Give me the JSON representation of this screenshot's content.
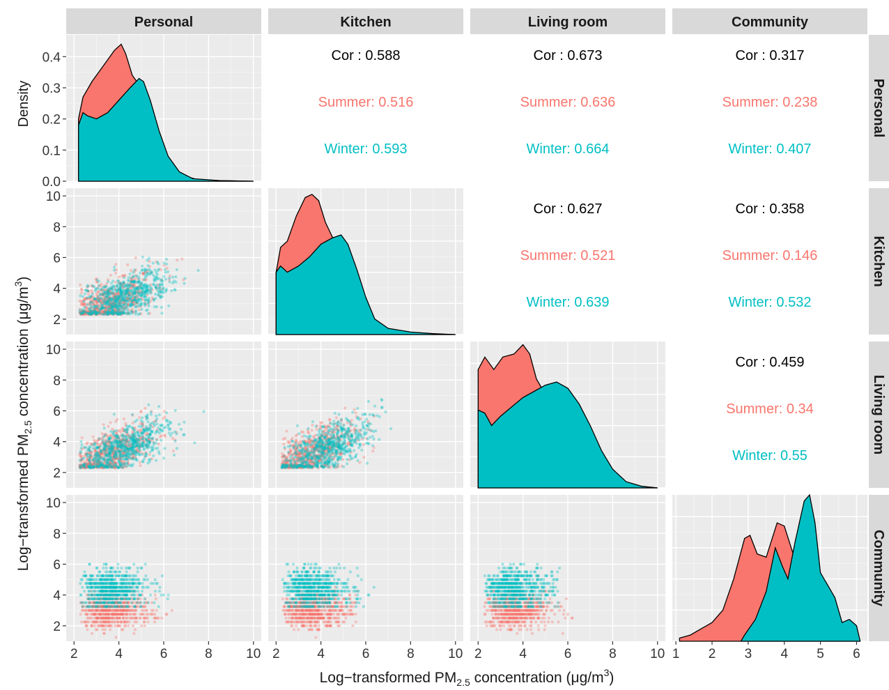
{
  "chart_data": {
    "type": "scatter-matrix",
    "ylabel_left_main": "Log−transformed PM",
    "ylabel_left_sub": "2.5",
    "ylabel_left_tail": " concentration (μg/m",
    "ylabel_left_sup": "3",
    "ylabel_left_close": ")",
    "xlabel_main": "Log−transformed PM",
    "xlabel_sub": "2.5",
    "xlabel_tail": " concentration (μg/m",
    "xlabel_sup": "3",
    "xlabel_close": ")",
    "density_ylabel": "Density",
    "variables": [
      "Personal",
      "Kitchen",
      "Living room",
      "Community"
    ],
    "series": [
      {
        "name": "Summer",
        "color": "#F8766D"
      },
      {
        "name": "Winter",
        "color": "#00BFC4"
      }
    ],
    "density_axis": {
      "ticks": [
        0.0,
        0.1,
        0.2,
        0.3,
        0.4
      ],
      "tick_labels": [
        "0.0",
        "0.1",
        "0.2",
        "0.3",
        "0.4"
      ],
      "ylim": [
        0,
        0.47
      ]
    },
    "y_axis": {
      "ticks": [
        2,
        4,
        6,
        8,
        10
      ],
      "ylim": [
        1,
        10.5
      ]
    },
    "x_axes": [
      {
        "ticks": [
          2,
          4,
          6,
          8,
          10
        ],
        "xlim": [
          1.65,
          10.35
        ]
      },
      {
        "ticks": [
          2,
          4,
          6,
          8,
          10
        ],
        "xlim": [
          1.65,
          10.35
        ]
      },
      {
        "ticks": [
          2,
          4,
          6,
          8,
          10
        ],
        "xlim": [
          1.65,
          10.35
        ]
      },
      {
        "ticks": [
          1,
          2,
          3,
          4,
          5,
          6
        ],
        "xlim": [
          0.9,
          6.3
        ]
      }
    ],
    "correlations": [
      {
        "row": 0,
        "col": 1,
        "cor_label": "Cor : 0.588",
        "summer_label": "Summer: 0.516",
        "winter_label": "Winter: 0.593"
      },
      {
        "row": 0,
        "col": 2,
        "cor_label": "Cor : 0.673",
        "summer_label": "Summer: 0.636",
        "winter_label": "Winter: 0.664"
      },
      {
        "row": 0,
        "col": 3,
        "cor_label": "Cor : 0.317",
        "summer_label": "Summer: 0.238",
        "winter_label": "Winter: 0.407"
      },
      {
        "row": 1,
        "col": 2,
        "cor_label": "Cor : 0.627",
        "summer_label": "Summer: 0.521",
        "winter_label": "Winter: 0.639"
      },
      {
        "row": 1,
        "col": 3,
        "cor_label": "Cor : 0.358",
        "summer_label": "Summer: 0.146",
        "winter_label": "Winter: 0.532"
      },
      {
        "row": 2,
        "col": 3,
        "cor_label": "Cor : 0.459",
        "summer_label": "Summer: 0.34",
        "winter_label": "Winter: 0.55"
      }
    ],
    "densities": [
      {
        "var": "Personal",
        "summer": [
          [
            2.2,
            0.0
          ],
          [
            2.2,
            0.2
          ],
          [
            2.4,
            0.27
          ],
          [
            2.8,
            0.32
          ],
          [
            3.3,
            0.37
          ],
          [
            3.8,
            0.42
          ],
          [
            4.1,
            0.44
          ],
          [
            4.3,
            0.41
          ],
          [
            4.6,
            0.34
          ],
          [
            5.0,
            0.3
          ],
          [
            5.4,
            0.22
          ],
          [
            5.8,
            0.13
          ],
          [
            6.3,
            0.06
          ],
          [
            6.8,
            0.02
          ],
          [
            7.5,
            0.005
          ],
          [
            8.5,
            0.002
          ],
          [
            10.0,
            0.0
          ]
        ],
        "winter": [
          [
            2.2,
            0.0
          ],
          [
            2.2,
            0.18
          ],
          [
            2.4,
            0.22
          ],
          [
            2.6,
            0.21
          ],
          [
            3.0,
            0.2
          ],
          [
            3.5,
            0.22
          ],
          [
            4.0,
            0.26
          ],
          [
            4.5,
            0.3
          ],
          [
            4.9,
            0.33
          ],
          [
            5.1,
            0.32
          ],
          [
            5.4,
            0.26
          ],
          [
            5.8,
            0.16
          ],
          [
            6.2,
            0.08
          ],
          [
            6.7,
            0.03
          ],
          [
            7.3,
            0.008
          ],
          [
            8.5,
            0.002
          ],
          [
            10.0,
            0.0
          ]
        ]
      },
      {
        "var": "Kitchen",
        "summer": [
          [
            2.0,
            0.0
          ],
          [
            2.0,
            0.2
          ],
          [
            2.2,
            0.28
          ],
          [
            2.5,
            0.3
          ],
          [
            2.9,
            0.38
          ],
          [
            3.3,
            0.44
          ],
          [
            3.6,
            0.45
          ],
          [
            3.9,
            0.43
          ],
          [
            4.2,
            0.36
          ],
          [
            4.6,
            0.3
          ],
          [
            5.0,
            0.24
          ],
          [
            5.5,
            0.14
          ],
          [
            6.0,
            0.06
          ],
          [
            6.6,
            0.02
          ],
          [
            7.5,
            0.01
          ],
          [
            8.5,
            0.003
          ],
          [
            10.0,
            0.0
          ]
        ],
        "winter": [
          [
            2.0,
            0.0
          ],
          [
            2.0,
            0.2
          ],
          [
            2.2,
            0.22
          ],
          [
            2.5,
            0.2
          ],
          [
            3.0,
            0.22
          ],
          [
            3.5,
            0.25
          ],
          [
            4.0,
            0.29
          ],
          [
            4.5,
            0.31
          ],
          [
            4.9,
            0.32
          ],
          [
            5.2,
            0.29
          ],
          [
            5.6,
            0.21
          ],
          [
            6.0,
            0.12
          ],
          [
            6.4,
            0.05
          ],
          [
            7.0,
            0.02
          ],
          [
            8.0,
            0.008
          ],
          [
            9.0,
            0.003
          ],
          [
            10.0,
            0.0
          ]
        ]
      },
      {
        "var": "Living room",
        "summer": [
          [
            2.0,
            0.0
          ],
          [
            2.0,
            0.38
          ],
          [
            2.3,
            0.42
          ],
          [
            2.7,
            0.38
          ],
          [
            3.1,
            0.42
          ],
          [
            3.6,
            0.43
          ],
          [
            4.0,
            0.46
          ],
          [
            4.3,
            0.43
          ],
          [
            4.6,
            0.35
          ],
          [
            5.0,
            0.3
          ],
          [
            5.6,
            0.24
          ],
          [
            6.3,
            0.16
          ],
          [
            7.0,
            0.09
          ],
          [
            7.8,
            0.04
          ],
          [
            8.5,
            0.015
          ],
          [
            9.3,
            0.005
          ],
          [
            10.0,
            0.0
          ]
        ],
        "winter": [
          [
            2.0,
            0.0
          ],
          [
            2.0,
            0.25
          ],
          [
            2.3,
            0.24
          ],
          [
            2.6,
            0.2
          ],
          [
            3.0,
            0.23
          ],
          [
            3.5,
            0.26
          ],
          [
            4.0,
            0.29
          ],
          [
            4.5,
            0.31
          ],
          [
            5.0,
            0.33
          ],
          [
            5.5,
            0.34
          ],
          [
            6.0,
            0.32
          ],
          [
            6.5,
            0.27
          ],
          [
            7.0,
            0.2
          ],
          [
            7.5,
            0.12
          ],
          [
            8.0,
            0.06
          ],
          [
            8.6,
            0.02
          ],
          [
            9.3,
            0.005
          ],
          [
            10.0,
            0.0
          ]
        ]
      },
      {
        "var": "Community",
        "summer": [
          [
            1.1,
            0.0
          ],
          [
            1.1,
            0.01
          ],
          [
            1.4,
            0.02
          ],
          [
            1.7,
            0.04
          ],
          [
            2.0,
            0.06
          ],
          [
            2.3,
            0.1
          ],
          [
            2.6,
            0.2
          ],
          [
            2.9,
            0.33
          ],
          [
            3.05,
            0.34
          ],
          [
            3.25,
            0.28
          ],
          [
            3.5,
            0.27
          ],
          [
            3.8,
            0.38
          ],
          [
            4.0,
            0.37
          ],
          [
            4.3,
            0.26
          ],
          [
            4.6,
            0.14
          ],
          [
            5.0,
            0.06
          ],
          [
            5.6,
            0.02
          ],
          [
            6.1,
            0.0
          ]
        ],
        "winter": [
          [
            2.8,
            0.0
          ],
          [
            2.9,
            0.02
          ],
          [
            3.2,
            0.07
          ],
          [
            3.5,
            0.16
          ],
          [
            3.75,
            0.3
          ],
          [
            3.95,
            0.24
          ],
          [
            4.1,
            0.2
          ],
          [
            4.3,
            0.32
          ],
          [
            4.55,
            0.45
          ],
          [
            4.7,
            0.47
          ],
          [
            4.85,
            0.38
          ],
          [
            5.0,
            0.22
          ],
          [
            5.2,
            0.18
          ],
          [
            5.4,
            0.14
          ],
          [
            5.6,
            0.06
          ],
          [
            5.8,
            0.07
          ],
          [
            6.0,
            0.05
          ],
          [
            6.1,
            0.0
          ]
        ]
      }
    ]
  }
}
